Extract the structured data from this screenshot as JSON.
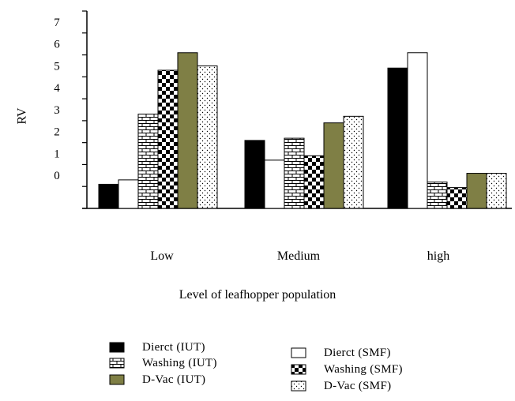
{
  "chart_data": {
    "type": "bar",
    "xlabel": "Level of leafhopper population",
    "ylabel": "RV",
    "categories": [
      "Low",
      "Medium",
      "high"
    ],
    "yticks": [
      "0",
      "1",
      "2",
      "3",
      "4",
      "5",
      "6",
      "7"
    ],
    "ylim": [
      -1,
      8
    ],
    "series": [
      {
        "name": "Dierct (IUT)",
        "color": "#000000",
        "pattern": "solid",
        "values": [
          0.1,
          2.1,
          5.4
        ]
      },
      {
        "name": "Dierct (SMF)",
        "color": "#ffffff",
        "pattern": "open",
        "values": [
          0.3,
          1.2,
          6.1
        ]
      },
      {
        "name": "Washing (IUT)",
        "color": "#ffffff",
        "pattern": "brick",
        "values": [
          3.3,
          2.2,
          0.2
        ]
      },
      {
        "name": "Washing (SMF)",
        "color": "#000000",
        "pattern": "checker",
        "values": [
          5.3,
          1.4,
          -0.05
        ]
      },
      {
        "name": "D-Vac (IUT)",
        "color": "#7f7f45",
        "pattern": "solid",
        "values": [
          6.1,
          2.9,
          0.6
        ]
      },
      {
        "name": "D-Vac (SMF)",
        "color": "#ffffff",
        "pattern": "dots",
        "values": [
          5.5,
          3.2,
          0.6
        ]
      }
    ],
    "legend_position": "bottom",
    "grid": false
  }
}
